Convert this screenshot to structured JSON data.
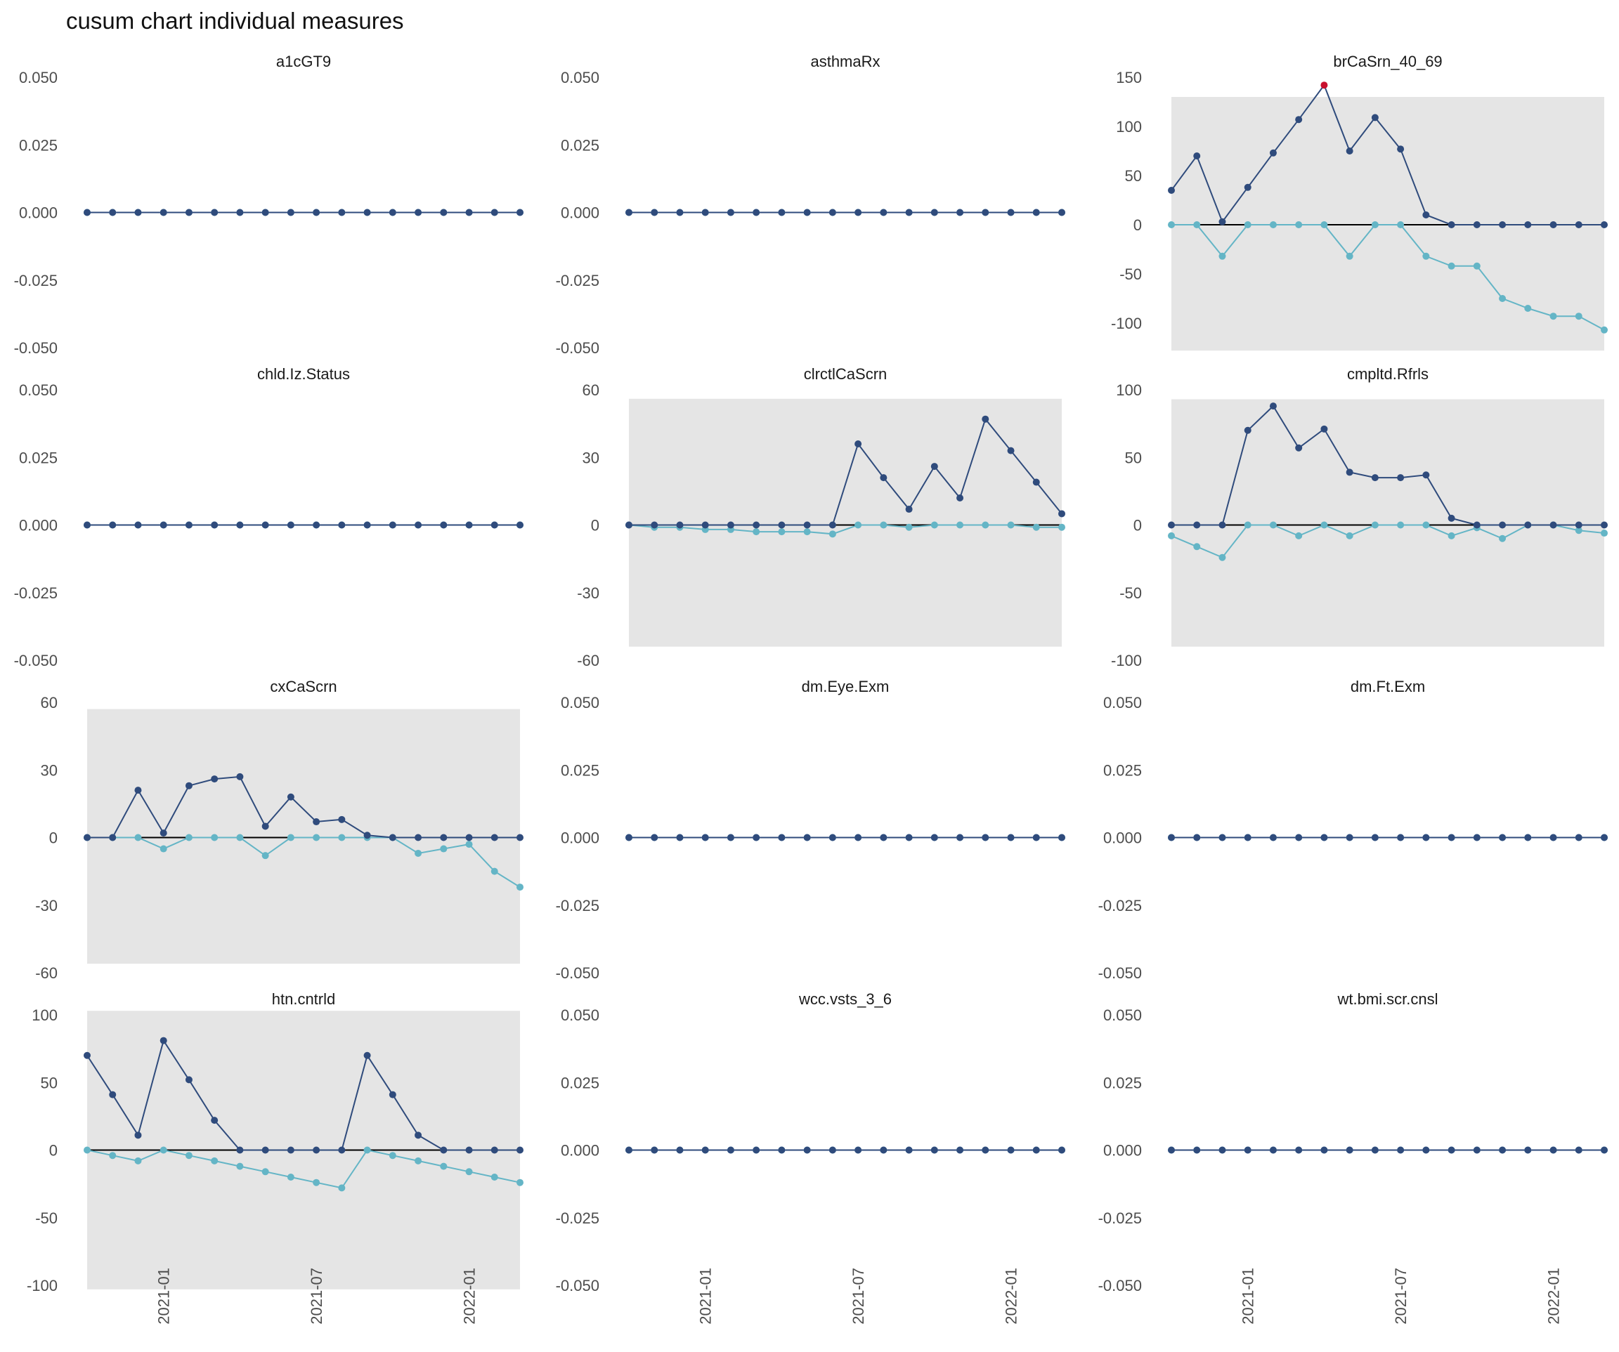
{
  "chart_data": {
    "type": "line",
    "title": "cusum chart  individual measures",
    "x": [
      "2020-10",
      "2020-11",
      "2020-12",
      "2021-01",
      "2021-02",
      "2021-03",
      "2021-04",
      "2021-05",
      "2021-06",
      "2021-07",
      "2021-08",
      "2021-09",
      "2021-10",
      "2021-11",
      "2021-12",
      "2022-01",
      "2022-02",
      "2022-03"
    ],
    "x_tick_labels": [
      "2021-01",
      "2021-07",
      "2022-01"
    ],
    "colors": {
      "upper_series": "#2f4b7c",
      "lower_series": "#64b5c6",
      "baseline": "#000000",
      "signal_point": "#c8102e",
      "panel_background": "#e5e5e5"
    },
    "panels": [
      {
        "title": "a1cGT9",
        "ylim": [
          -0.05,
          0.05
        ],
        "yticks": [
          "0.050",
          "0.025",
          "0.000",
          "-0.025",
          "-0.050"
        ],
        "shaded": false,
        "upper": [
          0,
          0,
          0,
          0,
          0,
          0,
          0,
          0,
          0,
          0,
          0,
          0,
          0,
          0,
          0,
          0,
          0,
          0
        ],
        "lower": [
          0,
          0,
          0,
          0,
          0,
          0,
          0,
          0,
          0,
          0,
          0,
          0,
          0,
          0,
          0,
          0,
          0,
          0
        ]
      },
      {
        "title": "asthmaRx",
        "ylim": [
          -0.05,
          0.05
        ],
        "yticks": [
          "0.050",
          "0.025",
          "0.000",
          "-0.025",
          "-0.050"
        ],
        "shaded": false,
        "upper": [
          0,
          0,
          0,
          0,
          0,
          0,
          0,
          0,
          0,
          0,
          0,
          0,
          0,
          0,
          0,
          0,
          0,
          0
        ],
        "lower": [
          0,
          0,
          0,
          0,
          0,
          0,
          0,
          0,
          0,
          0,
          0,
          0,
          0,
          0,
          0,
          0,
          0,
          0
        ]
      },
      {
        "title": "brCaSrn_40_69",
        "ylim": [
          -125,
          150
        ],
        "yticks": [
          "150",
          "100",
          "50",
          "0",
          "-50",
          "-100"
        ],
        "shaded": true,
        "shade_range": [
          -128,
          130
        ],
        "upper": [
          35,
          70,
          3,
          38,
          73,
          107,
          142,
          75,
          109,
          77,
          10,
          0,
          0,
          0,
          0,
          0,
          0,
          0
        ],
        "lower": [
          0,
          0,
          -32,
          0,
          0,
          0,
          0,
          -32,
          0,
          0,
          -32,
          -42,
          -42,
          -75,
          -85,
          -93,
          -93,
          -107
        ],
        "signal_index": 6
      },
      {
        "title": "chld.Iz.Status",
        "ylim": [
          -0.05,
          0.05
        ],
        "yticks": [
          "0.050",
          "0.025",
          "0.000",
          "-0.025",
          "-0.050"
        ],
        "shaded": false,
        "upper": [
          0,
          0,
          0,
          0,
          0,
          0,
          0,
          0,
          0,
          0,
          0,
          0,
          0,
          0,
          0,
          0,
          0,
          0
        ],
        "lower": [
          0,
          0,
          0,
          0,
          0,
          0,
          0,
          0,
          0,
          0,
          0,
          0,
          0,
          0,
          0,
          0,
          0,
          0
        ]
      },
      {
        "title": "clrctlCaScrn",
        "ylim": [
          -60,
          60
        ],
        "yticks": [
          "60",
          "30",
          "0",
          "-30",
          "-60"
        ],
        "shaded": true,
        "shade_range": [
          -54,
          56
        ],
        "upper": [
          0,
          0,
          0,
          0,
          0,
          0,
          0,
          0,
          0,
          36,
          21,
          7,
          26,
          12,
          47,
          33,
          19,
          5
        ],
        "lower": [
          0,
          -1,
          -1,
          -2,
          -2,
          -3,
          -3,
          -3,
          -4,
          0,
          0,
          -1,
          0,
          0,
          0,
          0,
          -1,
          -1
        ]
      },
      {
        "title": "cmpltd.Rfrls",
        "ylim": [
          -100,
          100
        ],
        "yticks": [
          "100",
          "50",
          "0",
          "-50",
          "-100"
        ],
        "shaded": true,
        "shade_range": [
          -90,
          93
        ],
        "upper": [
          0,
          0,
          0,
          70,
          88,
          57,
          71,
          39,
          35,
          35,
          37,
          5,
          0,
          0,
          0,
          0,
          0,
          0
        ],
        "lower": [
          -8,
          -16,
          -24,
          0,
          0,
          -8,
          0,
          -8,
          0,
          0,
          0,
          -8,
          -2,
          -10,
          0,
          0,
          -4,
          -6
        ]
      },
      {
        "title": "cxCaScrn",
        "ylim": [
          -60,
          60
        ],
        "yticks": [
          "60",
          "30",
          "0",
          "-30",
          "-60"
        ],
        "shaded": true,
        "shade_range": [
          -56,
          57
        ],
        "upper": [
          0,
          0,
          21,
          2,
          23,
          26,
          27,
          5,
          18,
          7,
          8,
          1,
          0,
          0,
          0,
          0,
          0,
          0
        ],
        "lower": [
          0,
          0,
          0,
          -5,
          0,
          0,
          0,
          -8,
          0,
          0,
          0,
          0,
          0,
          -7,
          -5,
          -3,
          -15,
          -22
        ]
      },
      {
        "title": "dm.Eye.Exm",
        "ylim": [
          -0.05,
          0.05
        ],
        "yticks": [
          "0.050",
          "0.025",
          "0.000",
          "-0.025",
          "-0.050"
        ],
        "shaded": false,
        "upper": [
          0,
          0,
          0,
          0,
          0,
          0,
          0,
          0,
          0,
          0,
          0,
          0,
          0,
          0,
          0,
          0,
          0,
          0
        ],
        "lower": [
          0,
          0,
          0,
          0,
          0,
          0,
          0,
          0,
          0,
          0,
          0,
          0,
          0,
          0,
          0,
          0,
          0,
          0
        ]
      },
      {
        "title": "dm.Ft.Exm",
        "ylim": [
          -0.05,
          0.05
        ],
        "yticks": [
          "0.050",
          "0.025",
          "0.000",
          "-0.025",
          "-0.050"
        ],
        "shaded": false,
        "upper": [
          0,
          0,
          0,
          0,
          0,
          0,
          0,
          0,
          0,
          0,
          0,
          0,
          0,
          0,
          0,
          0,
          0,
          0
        ],
        "lower": [
          0,
          0,
          0,
          0,
          0,
          0,
          0,
          0,
          0,
          0,
          0,
          0,
          0,
          0,
          0,
          0,
          0,
          0
        ]
      },
      {
        "title": "htn.cntrld",
        "ylim": [
          -100,
          100
        ],
        "yticks": [
          "100",
          "50",
          "0",
          "-50",
          "-100"
        ],
        "shaded": true,
        "shade_range": [
          -103,
          103
        ],
        "upper": [
          70,
          41,
          11,
          81,
          52,
          22,
          0,
          0,
          0,
          0,
          0,
          70,
          41,
          11,
          0,
          0,
          0,
          0
        ],
        "lower": [
          0,
          -4,
          -8,
          0,
          -4,
          -8,
          -12,
          -16,
          -20,
          -24,
          -28,
          0,
          -4,
          -8,
          -12,
          -16,
          -20,
          -24
        ]
      },
      {
        "title": "wcc.vsts_3_6",
        "ylim": [
          -0.05,
          0.05
        ],
        "yticks": [
          "0.050",
          "0.025",
          "0.000",
          "-0.025",
          "-0.050"
        ],
        "shaded": false,
        "upper": [
          0,
          0,
          0,
          0,
          0,
          0,
          0,
          0,
          0,
          0,
          0,
          0,
          0,
          0,
          0,
          0,
          0,
          0
        ],
        "lower": [
          0,
          0,
          0,
          0,
          0,
          0,
          0,
          0,
          0,
          0,
          0,
          0,
          0,
          0,
          0,
          0,
          0,
          0
        ]
      },
      {
        "title": "wt.bmi.scr.cnsl",
        "ylim": [
          -0.05,
          0.05
        ],
        "yticks": [
          "0.050",
          "0.025",
          "0.000",
          "-0.025",
          "-0.050"
        ],
        "shaded": false,
        "upper": [
          0,
          0,
          0,
          0,
          0,
          0,
          0,
          0,
          0,
          0,
          0,
          0,
          0,
          0,
          0,
          0,
          0,
          0
        ],
        "lower": [
          0,
          0,
          0,
          0,
          0,
          0,
          0,
          0,
          0,
          0,
          0,
          0,
          0,
          0,
          0,
          0,
          0,
          0
        ]
      }
    ]
  }
}
